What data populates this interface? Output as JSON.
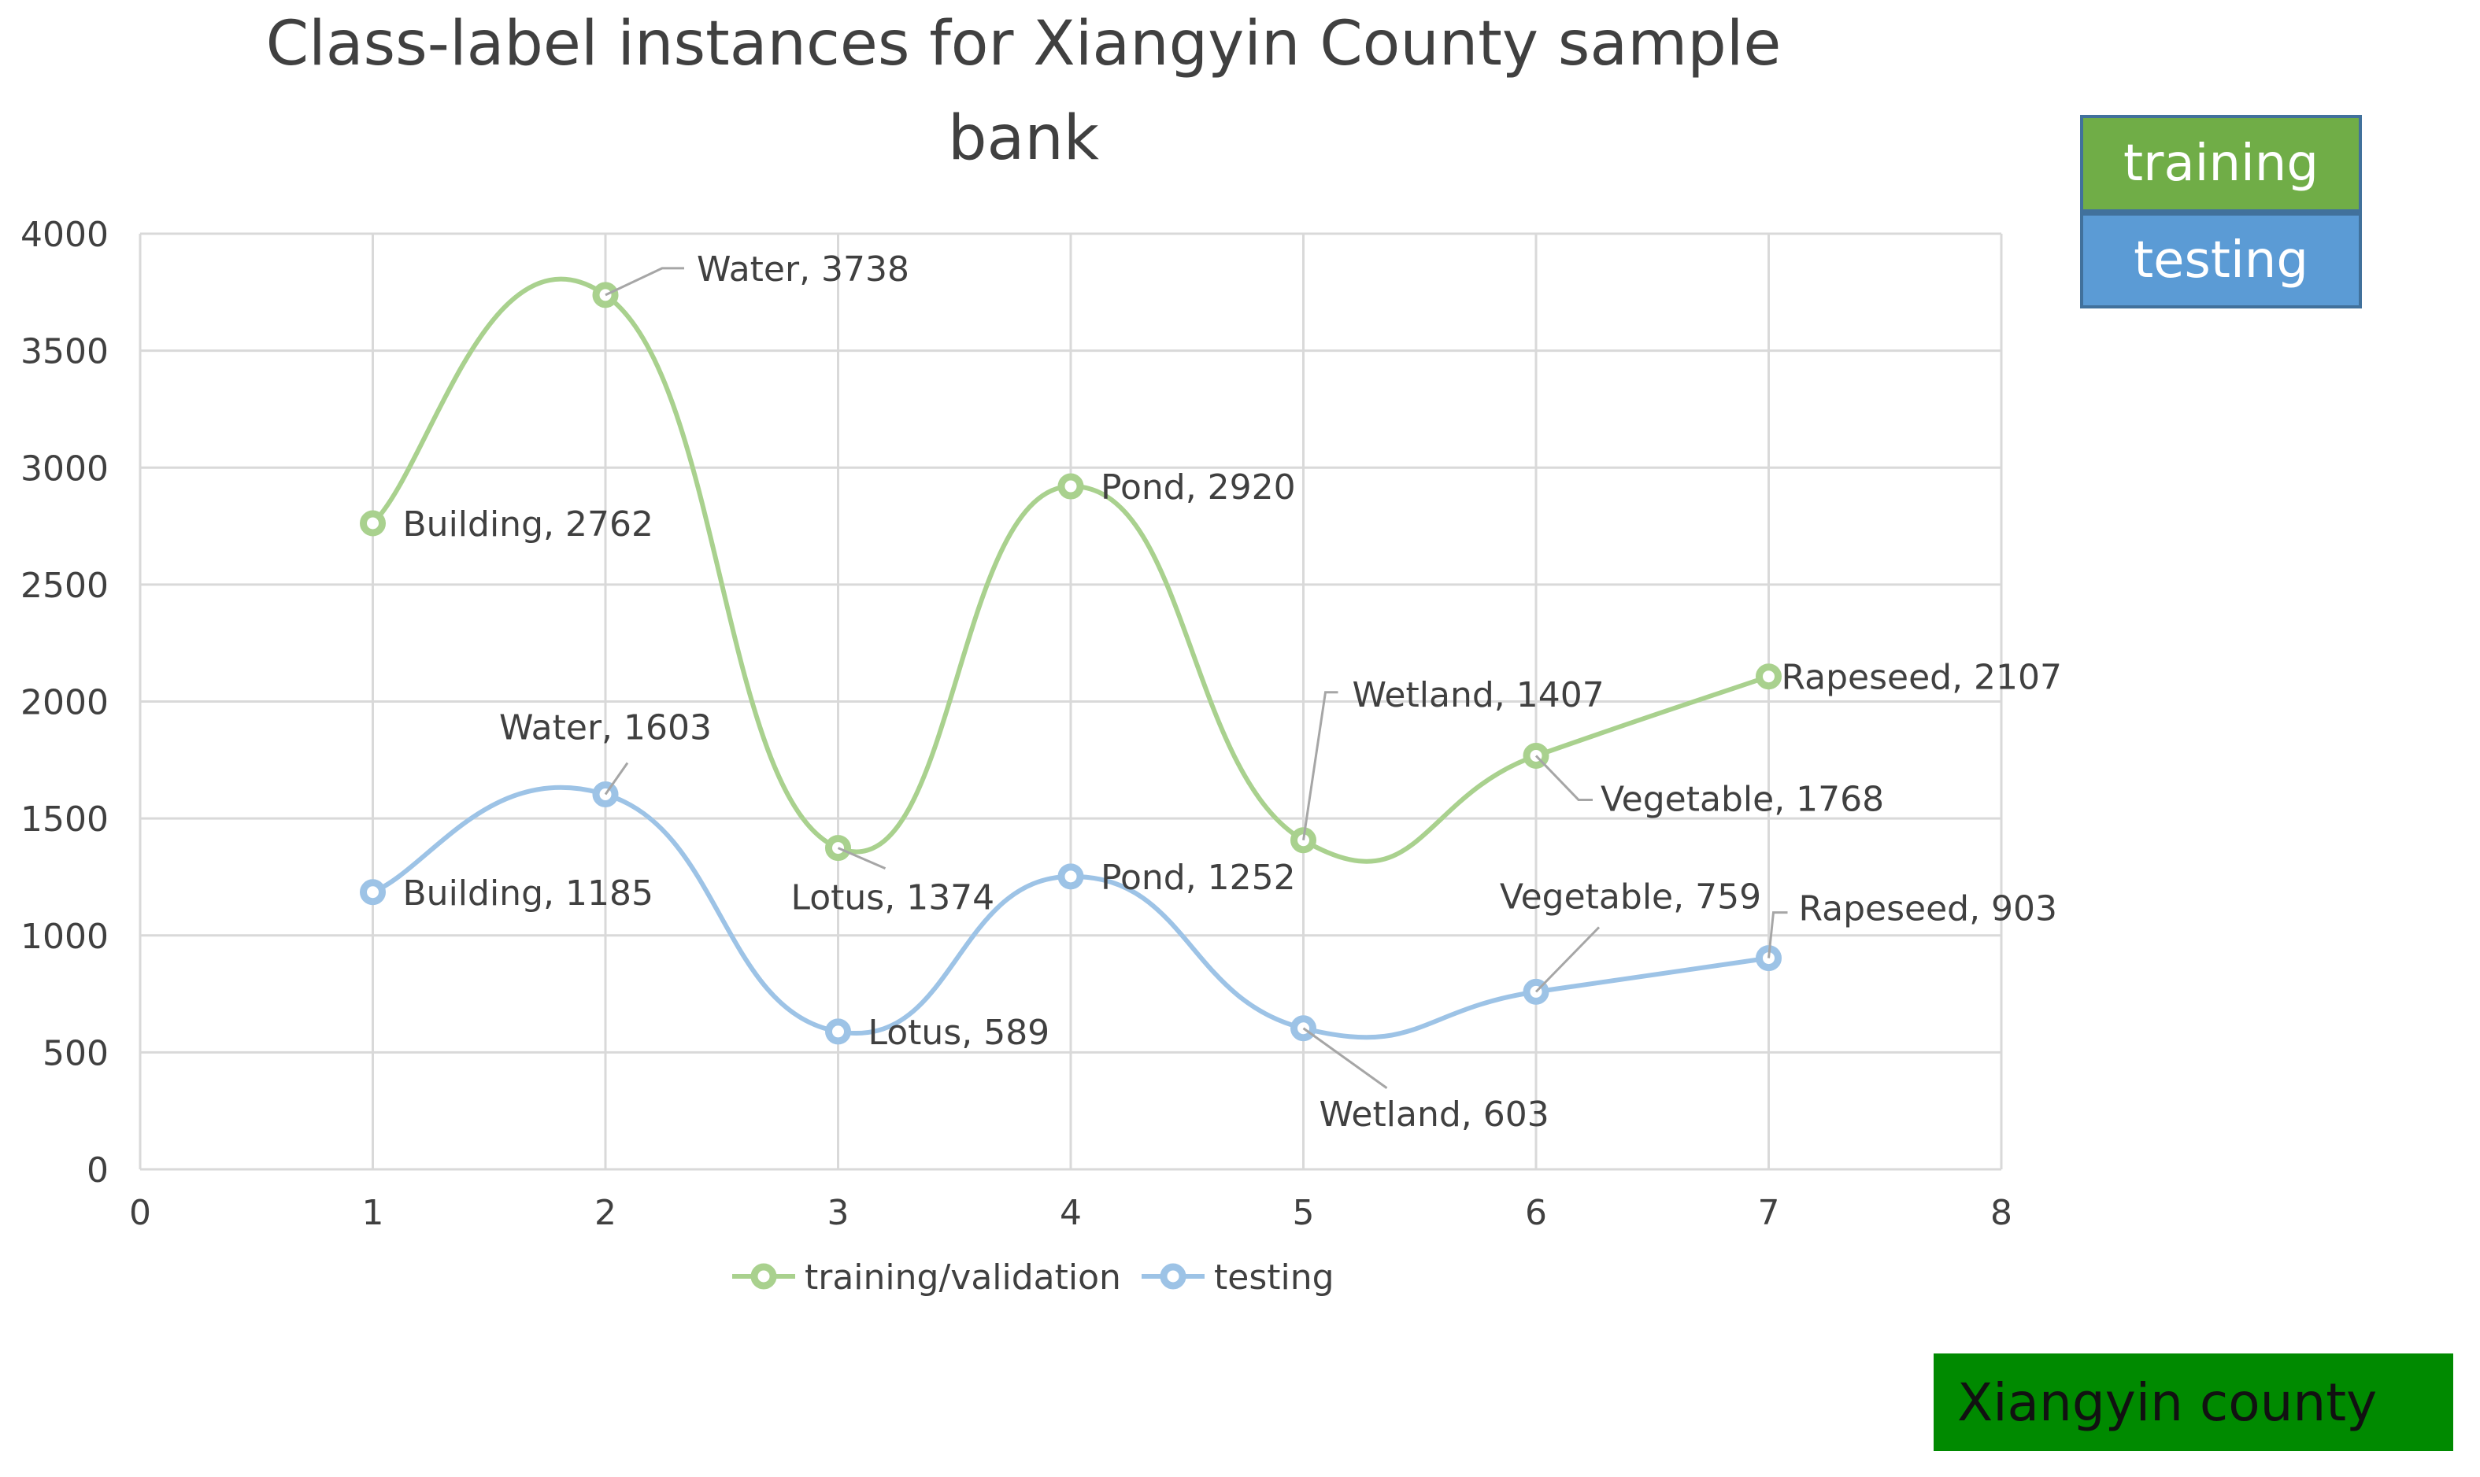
{
  "chart_data": {
    "type": "line",
    "title_lines": [
      "Class-label instances for Xiangyin County sample",
      "bank"
    ],
    "xlim": [
      0,
      8
    ],
    "ylim": [
      0,
      4000
    ],
    "x_ticks": [
      "0",
      "1",
      "2",
      "3",
      "4",
      "5",
      "6",
      "7",
      "8"
    ],
    "y_ticks": [
      "0",
      "500",
      "1000",
      "1500",
      "2000",
      "2500",
      "3000",
      "3500",
      "4000"
    ],
    "grid": true,
    "smooth": true,
    "legend_position": "bottom",
    "series": [
      {
        "name": "training/validation",
        "color": "#a9d18e",
        "x": [
          1,
          2,
          3,
          4,
          5,
          6,
          7
        ],
        "y": [
          2762,
          3738,
          1374,
          2920,
          1407,
          1768,
          2107
        ],
        "labels": [
          "Building, 2762",
          "Water, 3738",
          "Lotus, 1374",
          "Pond, 2920",
          "Wetland, 1407",
          "Vegetable, 1768",
          "Rapeseed, 2107"
        ]
      },
      {
        "name": "testing",
        "color": "#9dc3e6",
        "x": [
          1,
          2,
          3,
          4,
          5,
          6,
          7
        ],
        "y": [
          1185,
          1603,
          589,
          1252,
          603,
          759,
          903
        ],
        "labels": [
          "Building, 1185",
          "Water, 1603",
          "Lotus, 589",
          "Pond, 1252",
          "Wetland, 603",
          "Vegetable, 759",
          "Rapeseed, 903"
        ]
      }
    ]
  },
  "boxes": {
    "training": "training",
    "testing": "testing",
    "county": "Xiangyin county"
  },
  "colors": {
    "training_box": "#70ad47",
    "testing_box": "#5b9bd5",
    "county_box": "#008a00",
    "grid": "#d9d9d9"
  }
}
